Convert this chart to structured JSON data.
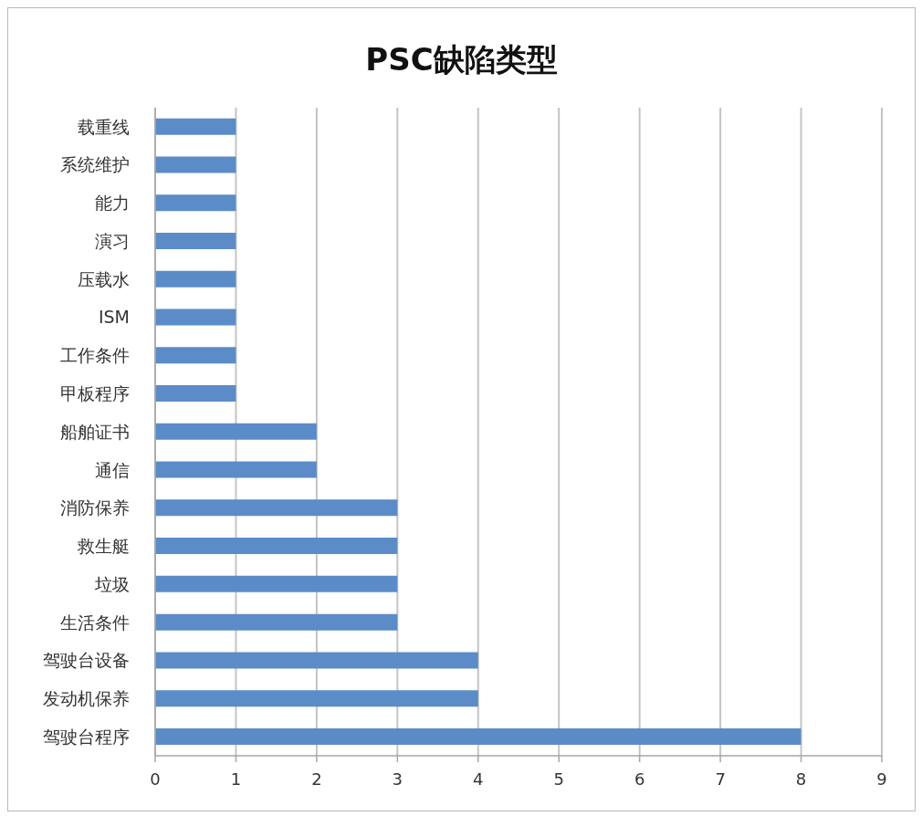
{
  "chart_data": {
    "type": "bar",
    "orientation": "horizontal",
    "title": "PSC缺陷类型",
    "categories": [
      "载重线",
      "系统维护",
      "能力",
      "演习",
      "压载水",
      "ISM",
      "工作条件",
      "甲板程序",
      "船舶证书",
      "通信",
      "消防保养",
      "救生艇",
      "垃圾",
      "生活条件",
      "驾驶台设备",
      "发动机保养",
      "驾驶台程序"
    ],
    "values": [
      1,
      1,
      1,
      1,
      1,
      1,
      1,
      1,
      2,
      2,
      3,
      3,
      3,
      3,
      4,
      4,
      8
    ],
    "color": "#5b8cc8",
    "xlim": [
      0,
      9
    ],
    "xticks": [
      0,
      1,
      2,
      3,
      4,
      5,
      6,
      7,
      8,
      9
    ],
    "grid": "x"
  }
}
